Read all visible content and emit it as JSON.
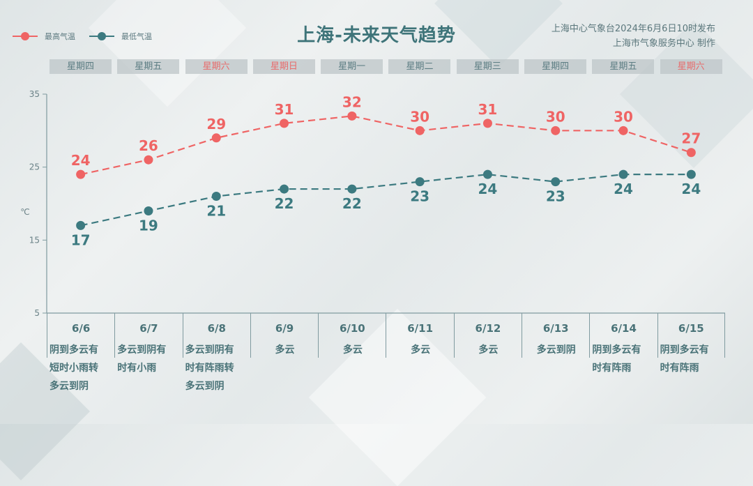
{
  "header": {
    "title": "上海-未来天气趋势",
    "publisher_line1": "上海中心气象台2024年6月6日10时发布",
    "publisher_line2": "上海市气象服务中心 制作"
  },
  "legend": {
    "high": {
      "label": "最高气温",
      "color": "#ef6464"
    },
    "low": {
      "label": "最低气温",
      "color": "#3c7a80"
    }
  },
  "weekdays": [
    {
      "label": "星期四",
      "weekend": false
    },
    {
      "label": "星期五",
      "weekend": false
    },
    {
      "label": "星期六",
      "weekend": true
    },
    {
      "label": "星期日",
      "weekend": true
    },
    {
      "label": "星期一",
      "weekend": false
    },
    {
      "label": "星期二",
      "weekend": false
    },
    {
      "label": "星期三",
      "weekend": false
    },
    {
      "label": "星期四",
      "weekend": false
    },
    {
      "label": "星期五",
      "weekend": false
    },
    {
      "label": "星期六",
      "weekend": true
    }
  ],
  "days": [
    {
      "date": "6/6",
      "weather": "阴到多云有\n短时小雨转\n多云到阴"
    },
    {
      "date": "6/7",
      "weather": "多云到阴有\n时有小雨"
    },
    {
      "date": "6/8",
      "weather": "多云到阴有\n时有阵雨转\n多云到阴"
    },
    {
      "date": "6/9",
      "weather": "多云"
    },
    {
      "date": "6/10",
      "weather": "多云"
    },
    {
      "date": "6/11",
      "weather": "多云"
    },
    {
      "date": "6/12",
      "weather": "多云"
    },
    {
      "date": "6/13",
      "weather": "多云到阴"
    },
    {
      "date": "6/14",
      "weather": "阴到多云有\n时有阵雨"
    },
    {
      "date": "6/15",
      "weather": "阴到多云有\n时有阵雨"
    }
  ],
  "axis": {
    "unit": "℃",
    "ticks": [
      35,
      25,
      15,
      5
    ]
  },
  "chart_data": {
    "type": "line",
    "title": "上海-未来天气趋势",
    "xlabel": "",
    "ylabel": "℃",
    "ylim": [
      5,
      35
    ],
    "yticks": [
      5,
      15,
      25,
      35
    ],
    "grid": false,
    "legend_position": "top-left",
    "categories": [
      "6/6",
      "6/7",
      "6/8",
      "6/9",
      "6/10",
      "6/11",
      "6/12",
      "6/13",
      "6/14",
      "6/15"
    ],
    "series": [
      {
        "name": "最高气温",
        "color": "#ef6464",
        "style": "dashed",
        "values": [
          24,
          26,
          29,
          31,
          32,
          30,
          31,
          30,
          30,
          27
        ]
      },
      {
        "name": "最低气温",
        "color": "#3c7a80",
        "style": "dashed",
        "values": [
          17,
          19,
          21,
          22,
          22,
          23,
          24,
          23,
          24,
          24
        ]
      }
    ]
  }
}
